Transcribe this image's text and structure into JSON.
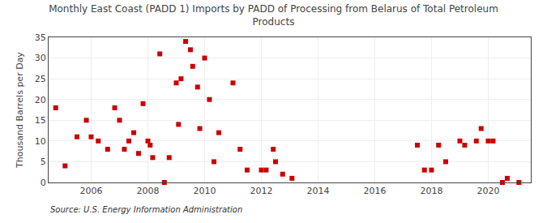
{
  "chart_data": {
    "type": "scatter",
    "title": "Monthly East Coast (PADD 1) Imports by PADD of Processing from Belarus of Total Petroleum\nProducts",
    "ylabel": "Thousand Barrels per Day",
    "annotations": [
      "Source: U.S. Energy Information Administration"
    ],
    "color": "#cc0000",
    "marker": "square",
    "grid": true,
    "xlim": [
      2004.5,
      2021.5
    ],
    "ylim": [
      0,
      35
    ],
    "xticks": [
      2006,
      2008,
      2010,
      2012,
      2014,
      2016,
      2018,
      2020
    ],
    "yticks": [
      0,
      5,
      10,
      15,
      20,
      25,
      30,
      35
    ],
    "x": [
      2004.75,
      2005.08,
      2005.5,
      2005.83,
      2006.0,
      2006.25,
      2006.58,
      2006.83,
      2007.0,
      2007.17,
      2007.33,
      2007.5,
      2007.67,
      2007.83,
      2008.0,
      2008.08,
      2008.17,
      2008.42,
      2008.58,
      2008.75,
      2009.0,
      2009.08,
      2009.17,
      2009.33,
      2009.5,
      2009.58,
      2009.75,
      2009.83,
      2010.0,
      2010.17,
      2010.33,
      2010.5,
      2011.0,
      2011.25,
      2011.5,
      2012.0,
      2012.17,
      2012.42,
      2012.5,
      2012.75,
      2013.08,
      2017.5,
      2017.75,
      2018.0,
      2018.25,
      2018.5,
      2019.0,
      2019.17,
      2019.58,
      2019.75,
      2020.0,
      2020.17,
      2020.5,
      2020.67,
      2021.08
    ],
    "values": [
      18,
      4,
      11,
      15,
      11,
      10,
      8,
      18,
      15,
      8,
      10,
      12,
      7,
      19,
      10,
      9,
      6,
      31,
      0,
      6,
      24,
      14,
      25,
      34,
      32,
      28,
      23,
      13,
      30,
      20,
      5,
      12,
      24,
      8,
      3,
      3,
      3,
      8,
      5,
      2,
      1,
      9,
      3,
      3,
      9,
      5,
      10,
      9,
      10,
      13,
      10,
      10,
      0,
      1,
      0
    ]
  }
}
